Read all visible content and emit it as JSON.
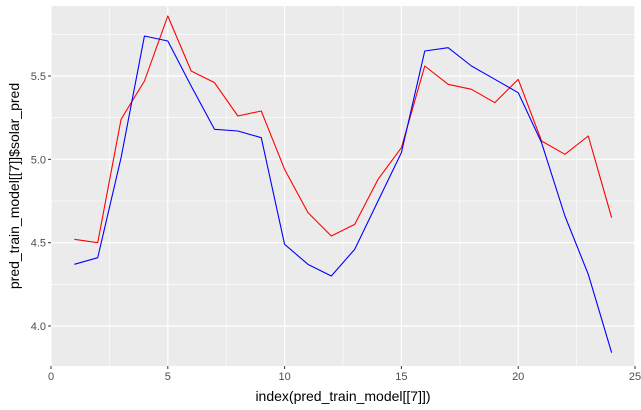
{
  "chart_data": {
    "type": "line",
    "title": "",
    "xlabel": "index(pred_train_model[[7]])",
    "ylabel": "pred_train_model[[7]]$solar_pred",
    "xlim": [
      0,
      25
    ],
    "ylim": [
      3.76,
      5.92
    ],
    "x_ticks": [
      0,
      5,
      10,
      15,
      20,
      25
    ],
    "y_ticks": [
      4.0,
      4.5,
      5.0,
      5.5
    ],
    "grid": true,
    "panel_background": "#ebebeb",
    "grid_color": "#ffffff",
    "legend": "none",
    "x": [
      1,
      2,
      3,
      4,
      5,
      6,
      7,
      8,
      9,
      10,
      11,
      12,
      13,
      14,
      15,
      16,
      17,
      18,
      19,
      20,
      21,
      22,
      23,
      24
    ],
    "series": [
      {
        "color": "#ff0000",
        "values": [
          4.52,
          4.5,
          5.24,
          5.47,
          5.86,
          5.53,
          5.46,
          5.26,
          5.29,
          4.94,
          4.68,
          4.54,
          4.61,
          4.88,
          5.07,
          5.56,
          5.45,
          5.42,
          5.34,
          5.48,
          5.11,
          5.03,
          5.14,
          4.65
        ]
      },
      {
        "color": "#0000ff",
        "values": [
          4.37,
          4.41,
          5.01,
          5.74,
          5.71,
          5.44,
          5.18,
          5.17,
          5.13,
          4.49,
          4.37,
          4.3,
          4.46,
          4.75,
          5.04,
          5.65,
          5.67,
          5.56,
          5.48,
          5.4,
          5.1,
          4.66,
          4.31,
          3.84
        ]
      }
    ]
  }
}
